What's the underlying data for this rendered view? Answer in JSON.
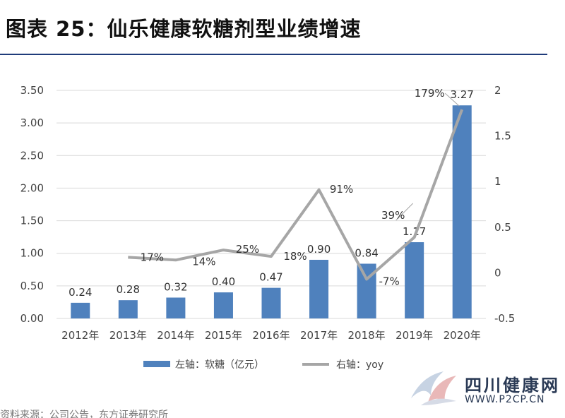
{
  "title": "图表 25：仙乐健康软糖剂型业绩增速",
  "chart_data": {
    "type": "bar+line",
    "categories": [
      "2012年",
      "2013年",
      "2014年",
      "2015年",
      "2016年",
      "2017年",
      "2018年",
      "2019年",
      "2020年"
    ],
    "left_axis": {
      "ticks": [
        "0.00",
        "0.50",
        "1.00",
        "1.50",
        "2.00",
        "2.50",
        "3.00",
        "3.50"
      ],
      "min": 0,
      "max": 3.5
    },
    "right_axis": {
      "ticks": [
        "-0.5",
        "0",
        "0.5",
        "1",
        "1.5",
        "2"
      ],
      "min": -0.5,
      "max": 2
    },
    "bar_series": {
      "name": "左轴：软糖（亿元）",
      "color": "#4f81bd",
      "values": [
        0.24,
        0.28,
        0.32,
        0.4,
        0.47,
        0.9,
        0.84,
        1.17,
        3.27
      ],
      "labels": [
        "0.24",
        "0.28",
        "0.32",
        "0.40",
        "0.47",
        "0.90",
        "0.84",
        "1.17",
        "3.27"
      ]
    },
    "line_series": {
      "name": "右轴：yoy",
      "color": "#a6a6a6",
      "values": [
        null,
        0.17,
        0.14,
        0.25,
        0.18,
        0.91,
        -0.07,
        0.39,
        1.79
      ],
      "labels": [
        "",
        "17%",
        "14%",
        "25%",
        "18%",
        "91%",
        "-7%",
        "39%",
        "179%"
      ]
    },
    "grid": true,
    "legend_position": "bottom"
  },
  "watermark": {
    "name": "四川健康网",
    "url": "WWW.P2CP.CN"
  },
  "footer_partial": "资料来源：公司公告，东方证券研究所"
}
